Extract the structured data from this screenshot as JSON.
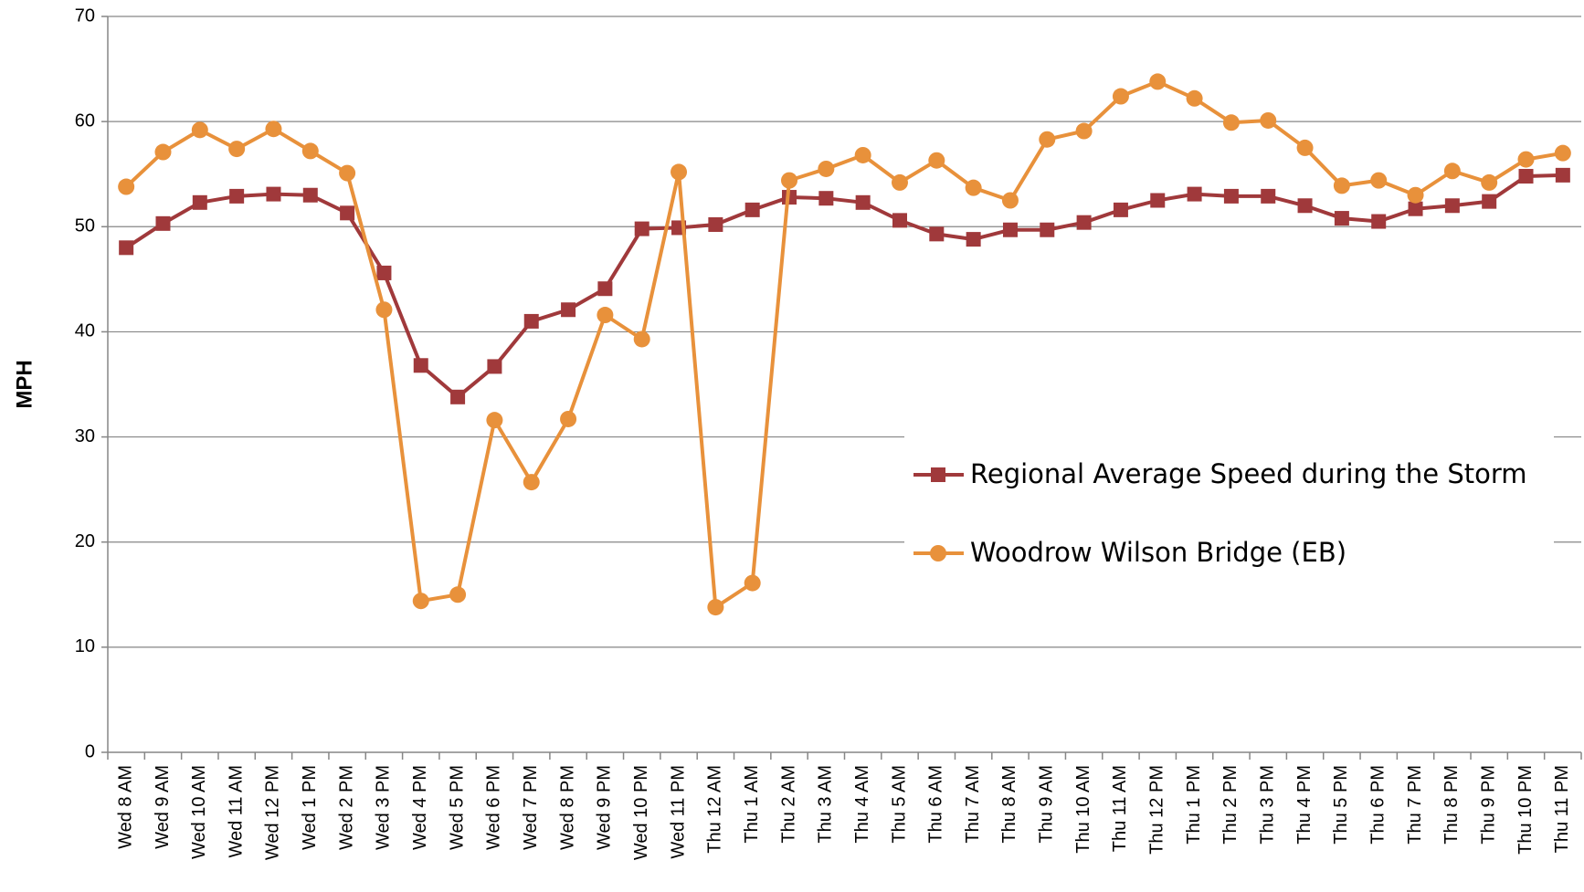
{
  "chart_data": {
    "type": "line",
    "y_label": "MPH",
    "categories": [
      "Wed 8 AM",
      "Wed 9 AM",
      "Wed 10 AM",
      "Wed 11 AM",
      "Wed 12 PM",
      "Wed 1 PM",
      "Wed 2 PM",
      "Wed 3 PM",
      "Wed 4 PM",
      "Wed 5 PM",
      "Wed 6 PM",
      "Wed 7 PM",
      "Wed 8 PM",
      "Wed 9 PM",
      "Wed 10 PM",
      "Wed 11 PM",
      "Thu 12 AM",
      "Thu 1 AM",
      "Thu 2 AM",
      "Thu 3 AM",
      "Thu 4 AM",
      "Thu 5 AM",
      "Thu 6 AM",
      "Thu 7 AM",
      "Thu 8 AM",
      "Thu 9 AM",
      "Thu 10 AM",
      "Thu 11 AM",
      "Thu 12 PM",
      "Thu 1 PM",
      "Thu 2 PM",
      "Thu 3 PM",
      "Thu 4 PM",
      "Thu 5 PM",
      "Thu 6 PM",
      "Thu 7 PM",
      "Thu 8 PM",
      "Thu 9 PM",
      "Thu 10 PM",
      "Thu 11 PM"
    ],
    "series": [
      {
        "name": "Regional Average Speed during the Storm",
        "color": "#a0393b",
        "marker": "square",
        "values": [
          48.0,
          50.3,
          52.3,
          52.9,
          53.1,
          53.0,
          51.3,
          45.6,
          36.8,
          33.8,
          36.7,
          41.0,
          42.1,
          44.1,
          49.8,
          49.9,
          50.2,
          51.6,
          52.8,
          52.7,
          52.3,
          50.6,
          49.3,
          48.8,
          49.7,
          49.7,
          50.4,
          51.6,
          52.5,
          53.1,
          52.9,
          52.9,
          52.0,
          50.8,
          50.5,
          51.7,
          52.0,
          52.4,
          54.8,
          54.9
        ]
      },
      {
        "name": "Woodrow Wilson Bridge (EB)",
        "color": "#e8913b",
        "marker": "circle",
        "values": [
          53.8,
          57.1,
          59.2,
          57.4,
          59.3,
          57.2,
          55.1,
          42.1,
          14.4,
          15.0,
          31.6,
          25.7,
          31.7,
          41.6,
          39.3,
          55.2,
          13.8,
          16.1,
          54.4,
          55.5,
          56.8,
          54.2,
          56.3,
          53.7,
          52.5,
          58.3,
          59.1,
          62.4,
          63.8,
          62.2,
          59.9,
          60.1,
          57.5,
          53.9,
          54.4,
          53.0,
          55.3,
          54.2,
          56.4,
          57.0
        ]
      }
    ],
    "ylim": [
      0,
      70
    ],
    "yticks": [
      0,
      10,
      20,
      30,
      40,
      50,
      60,
      70
    ],
    "grid": true,
    "legend": "center-right"
  }
}
